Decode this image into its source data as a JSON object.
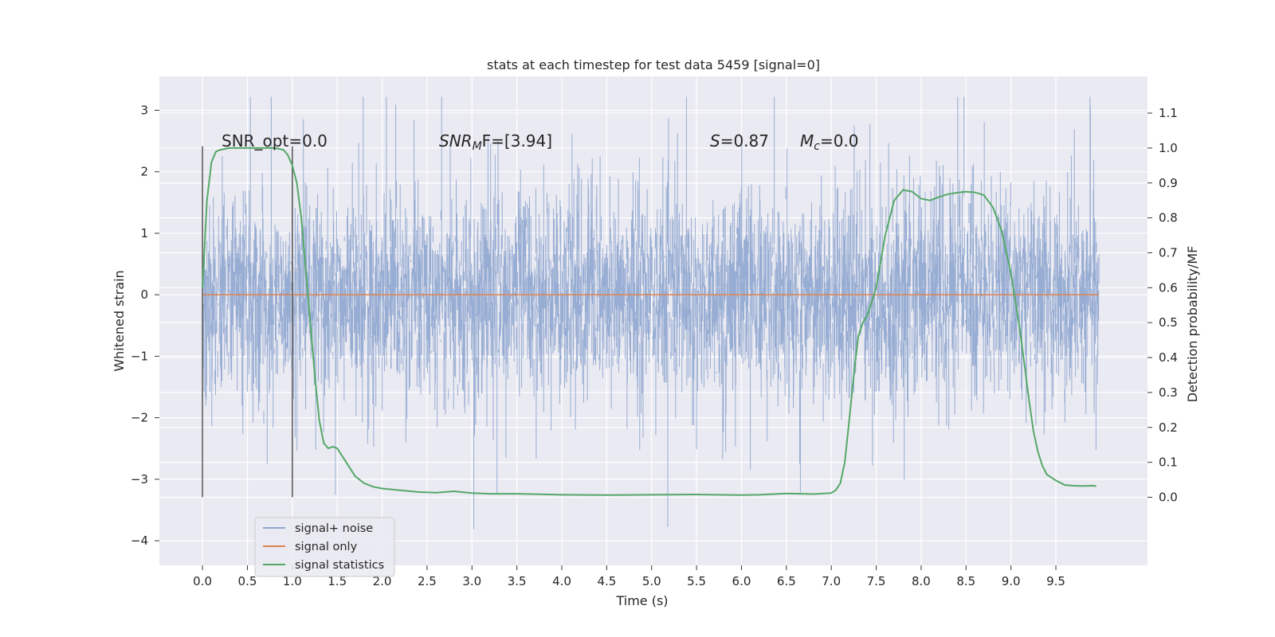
{
  "chart_data": {
    "type": "line",
    "title": "stats at each timestep for test data 5459 [signal=0]",
    "xlabel": "Time (s)",
    "ylabel_left": "Whitened strain",
    "ylabel_right": "Detection probability/MF",
    "xlim": [
      -0.48,
      10.52
    ],
    "ylim_left": [
      -4.4,
      3.55
    ],
    "ylim_right": [
      -0.195,
      1.205
    ],
    "x_ticks": [
      0.0,
      0.5,
      1.0,
      1.5,
      2.0,
      2.5,
      3.0,
      3.5,
      4.0,
      4.5,
      5.0,
      5.5,
      6.0,
      6.5,
      7.0,
      7.5,
      8.0,
      8.5,
      9.0,
      9.5
    ],
    "x_tick_labels": [
      "0.0",
      "0.5",
      "1.0",
      "1.5",
      "2.0",
      "2.5",
      "3.0",
      "3.5",
      "4.0",
      "4.5",
      "5.0",
      "5.5",
      "6.0",
      "6.5",
      "7.0",
      "7.5",
      "8.0",
      "8.5",
      "9.0",
      "9.5"
    ],
    "y_left_ticks": [
      3,
      2,
      1,
      0,
      -1,
      -2,
      -3,
      -4
    ],
    "y_left_tick_labels": [
      "3",
      "2",
      "1",
      "0",
      "−1",
      "−2",
      "−3",
      "−4"
    ],
    "y_right_ticks": [
      1.1,
      1.0,
      0.9,
      0.8,
      0.7,
      0.6,
      0.5,
      0.4,
      0.3,
      0.2,
      0.1,
      0.0
    ],
    "y_right_tick_labels": [
      "1.1",
      "1.0",
      "0.9",
      "0.8",
      "0.7",
      "0.6",
      "0.5",
      "0.4",
      "0.3",
      "0.2",
      "0.1",
      "0.0"
    ],
    "grid": true,
    "legend_position": "lower-left",
    "annotations": {
      "snr_opt": "SNR_opt=0.0",
      "snr_mf_label": "SNR",
      "snr_mf_sub": "M",
      "snr_mf_rest": "F=[3.94]",
      "s_label": "S",
      "s_value": "=0.87",
      "mc_label": "M",
      "mc_sub": "c",
      "mc_value": "=0.0"
    },
    "series": [
      {
        "name": "signal+ noise",
        "axis": "left",
        "color": "#8fa6cf",
        "style": "noise",
        "x_range": [
          0.0,
          9.98
        ],
        "typical_envelope": [
          -1.5,
          1.5
        ],
        "extreme_range": [
          -4.05,
          3.22
        ]
      },
      {
        "name": "signal only",
        "axis": "left",
        "color": "#dd8452",
        "x": [
          0.0,
          9.98
        ],
        "y": [
          0.0,
          0.0
        ]
      },
      {
        "name": "signal statistics",
        "axis": "right",
        "color": "#55a868",
        "x": [
          0.0,
          0.05,
          0.1,
          0.15,
          0.2,
          0.3,
          0.4,
          0.5,
          0.6,
          0.7,
          0.8,
          0.9,
          0.95,
          1.0,
          1.05,
          1.1,
          1.15,
          1.2,
          1.25,
          1.3,
          1.35,
          1.4,
          1.45,
          1.5,
          1.6,
          1.7,
          1.8,
          1.9,
          2.0,
          2.2,
          2.4,
          2.6,
          2.8,
          3.0,
          3.2,
          3.5,
          4.0,
          4.5,
          5.0,
          5.5,
          6.0,
          6.2,
          6.5,
          6.8,
          7.0,
          7.05,
          7.1,
          7.15,
          7.2,
          7.25,
          7.3,
          7.35,
          7.4,
          7.5,
          7.6,
          7.7,
          7.8,
          7.9,
          8.0,
          8.1,
          8.2,
          8.3,
          8.4,
          8.5,
          8.6,
          8.7,
          8.8,
          8.9,
          9.0,
          9.1,
          9.15,
          9.2,
          9.25,
          9.3,
          9.35,
          9.4,
          9.5,
          9.6,
          9.7,
          9.8,
          9.9,
          9.95
        ],
        "y": [
          0.6,
          0.85,
          0.96,
          0.99,
          0.995,
          1.0,
          1.0,
          1.0,
          1.0,
          1.0,
          1.0,
          0.995,
          0.98,
          0.95,
          0.9,
          0.8,
          0.65,
          0.5,
          0.35,
          0.22,
          0.155,
          0.14,
          0.145,
          0.14,
          0.1,
          0.06,
          0.04,
          0.03,
          0.025,
          0.02,
          0.015,
          0.013,
          0.017,
          0.012,
          0.01,
          0.01,
          0.007,
          0.006,
          0.007,
          0.008,
          0.006,
          0.007,
          0.011,
          0.009,
          0.012,
          0.02,
          0.04,
          0.1,
          0.22,
          0.35,
          0.46,
          0.5,
          0.52,
          0.6,
          0.75,
          0.85,
          0.88,
          0.875,
          0.855,
          0.85,
          0.86,
          0.868,
          0.872,
          0.875,
          0.873,
          0.865,
          0.83,
          0.76,
          0.64,
          0.48,
          0.38,
          0.28,
          0.19,
          0.13,
          0.09,
          0.065,
          0.048,
          0.035,
          0.033,
          0.032,
          0.033,
          0.032
        ]
      }
    ]
  },
  "legend": {
    "items": [
      {
        "label": "signal+ noise",
        "color": "#8fa6cf"
      },
      {
        "label": "signal only",
        "color": "#dd8452"
      },
      {
        "label": "signal statistics",
        "color": "#55a868"
      }
    ]
  }
}
